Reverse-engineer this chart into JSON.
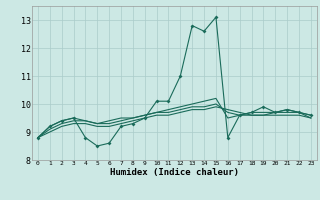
{
  "title": "",
  "xlabel": "Humidex (Indice chaleur)",
  "ylabel": "",
  "bg_color": "#cce8e4",
  "grid_color": "#aaccca",
  "line_color": "#1a6b5a",
  "xlim": [
    -0.5,
    23.5
  ],
  "ylim": [
    8.0,
    13.5
  ],
  "yticks": [
    8,
    9,
    10,
    11,
    12,
    13
  ],
  "xticks": [
    0,
    1,
    2,
    3,
    4,
    5,
    6,
    7,
    8,
    9,
    10,
    11,
    12,
    13,
    14,
    15,
    16,
    17,
    18,
    19,
    20,
    21,
    22,
    23
  ],
  "series": [
    [
      8.8,
      9.2,
      9.4,
      9.5,
      8.8,
      8.5,
      8.6,
      9.2,
      9.3,
      9.5,
      10.1,
      10.1,
      11.0,
      12.8,
      12.6,
      13.1,
      8.8,
      9.6,
      9.7,
      9.9,
      9.7,
      9.8,
      9.7,
      9.6
    ],
    [
      8.8,
      9.2,
      9.4,
      9.5,
      9.4,
      9.3,
      9.4,
      9.5,
      9.5,
      9.6,
      9.7,
      9.8,
      9.9,
      10.0,
      10.1,
      10.2,
      9.5,
      9.6,
      9.7,
      9.7,
      9.7,
      9.8,
      9.7,
      9.6
    ],
    [
      8.8,
      9.1,
      9.3,
      9.4,
      9.4,
      9.3,
      9.3,
      9.4,
      9.5,
      9.6,
      9.7,
      9.7,
      9.8,
      9.9,
      9.9,
      10.0,
      9.7,
      9.6,
      9.6,
      9.6,
      9.7,
      9.7,
      9.7,
      9.5
    ],
    [
      8.8,
      9.0,
      9.2,
      9.3,
      9.3,
      9.2,
      9.2,
      9.3,
      9.4,
      9.5,
      9.6,
      9.6,
      9.7,
      9.8,
      9.8,
      9.9,
      9.8,
      9.7,
      9.6,
      9.6,
      9.6,
      9.6,
      9.6,
      9.5
    ]
  ],
  "marker_series": 0,
  "marker": "D",
  "marker_size": 2.0
}
